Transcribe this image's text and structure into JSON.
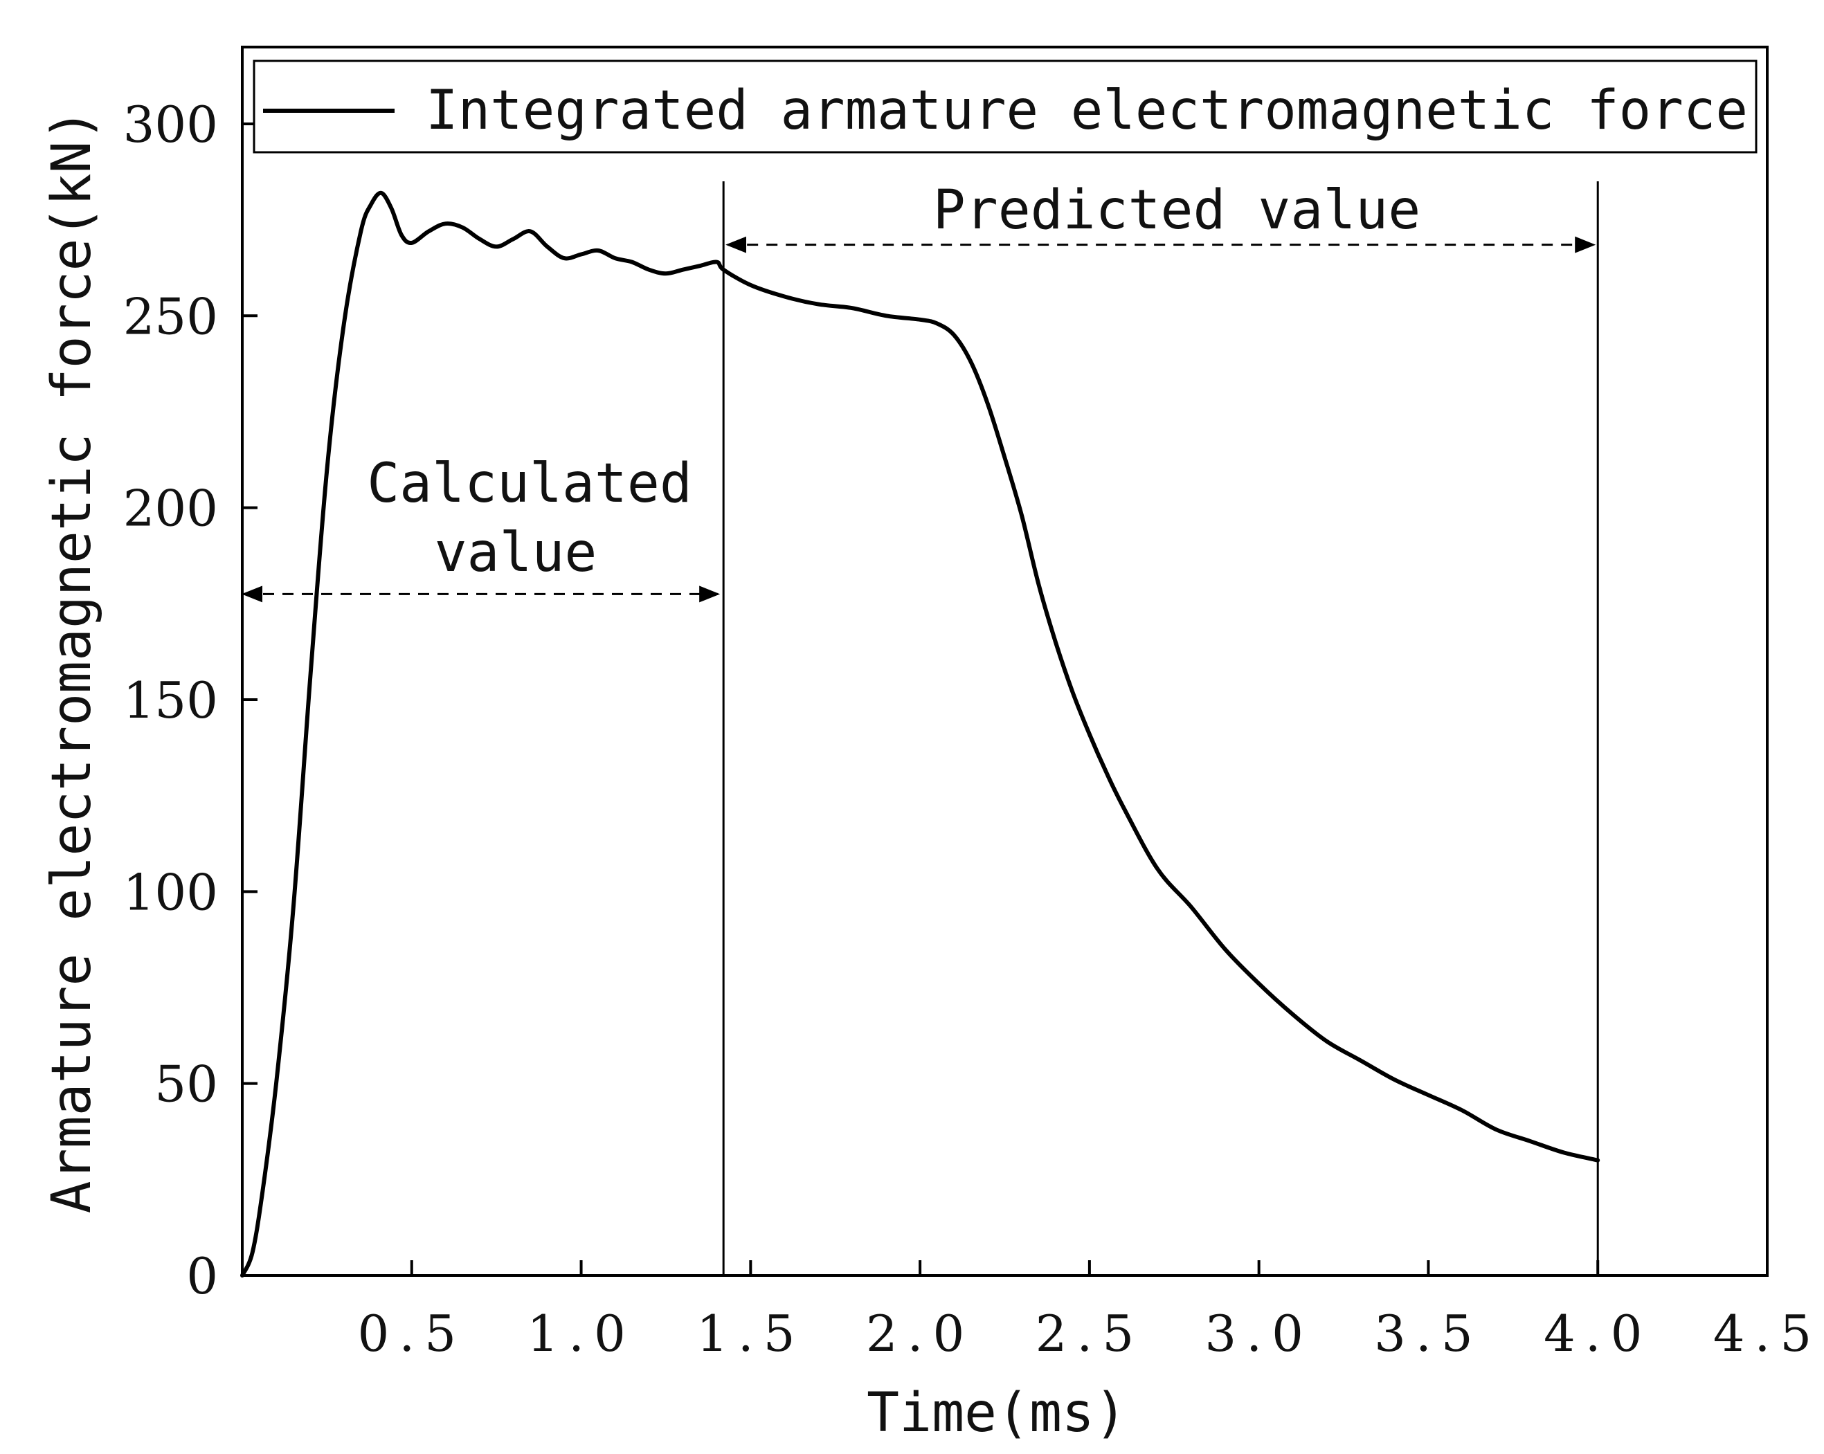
{
  "chart_data": {
    "type": "line",
    "title": "",
    "xlabel": "Time(ms)",
    "ylabel": "Armature electromagnetic force(kN)",
    "xlim": [
      0,
      4.5
    ],
    "ylim": [
      0,
      320
    ],
    "xticks": [
      0.5,
      1.0,
      1.5,
      2.0,
      2.5,
      3.0,
      3.5,
      4.0,
      4.5
    ],
    "xtick_labels": [
      "0.5",
      "1.0",
      "1.5",
      "2.0",
      "2.5",
      "3.0",
      "3.5",
      "4.0",
      "4.5"
    ],
    "yticks": [
      0,
      50,
      100,
      150,
      200,
      250,
      300
    ],
    "ytick_labels": [
      "0",
      "50",
      "100",
      "150",
      "200",
      "250",
      "300"
    ],
    "grid": false,
    "legend": {
      "position": "top",
      "entries": [
        "Integrated armature electromagnetic force"
      ]
    },
    "series": [
      {
        "name": "Integrated armature electromagnetic force",
        "color": "#000000",
        "x": [
          0,
          0.03,
          0.06,
          0.1,
          0.15,
          0.2,
          0.25,
          0.3,
          0.35,
          0.38,
          0.41,
          0.44,
          0.47,
          0.5,
          0.55,
          0.6,
          0.65,
          0.7,
          0.75,
          0.8,
          0.85,
          0.9,
          0.95,
          1.0,
          1.05,
          1.1,
          1.15,
          1.2,
          1.25,
          1.3,
          1.35,
          1.4,
          1.42,
          1.5,
          1.6,
          1.7,
          1.8,
          1.9,
          2.0,
          2.05,
          2.1,
          2.15,
          2.2,
          2.25,
          2.3,
          2.35,
          2.4,
          2.45,
          2.5,
          2.55,
          2.6,
          2.7,
          2.8,
          2.9,
          3.0,
          3.1,
          3.2,
          3.3,
          3.4,
          3.5,
          3.6,
          3.7,
          3.8,
          3.9,
          4.0
        ],
        "y": [
          0,
          6,
          22,
          50,
          95,
          155,
          210,
          248,
          272,
          279,
          282,
          278,
          271,
          269,
          272,
          274,
          273,
          270,
          268,
          270,
          272,
          268,
          265,
          266,
          267,
          265,
          264,
          262,
          261,
          262,
          263,
          264,
          262,
          258,
          255,
          253,
          252,
          250,
          249,
          248,
          245,
          238,
          227,
          213,
          198,
          180,
          165,
          152,
          141,
          131,
          122,
          106,
          96,
          85,
          76,
          68,
          61,
          56,
          51,
          47,
          43,
          38,
          35,
          32,
          30
        ]
      }
    ],
    "annotations": [
      {
        "text": "Calculated value",
        "from_x": 0.0,
        "to_x": 1.42,
        "at_y": 177.5
      },
      {
        "text": "Predicted value",
        "from_x": 1.42,
        "to_x": 4.0,
        "at_y": 268.5
      }
    ],
    "vlines": [
      1.42,
      4.0
    ]
  }
}
